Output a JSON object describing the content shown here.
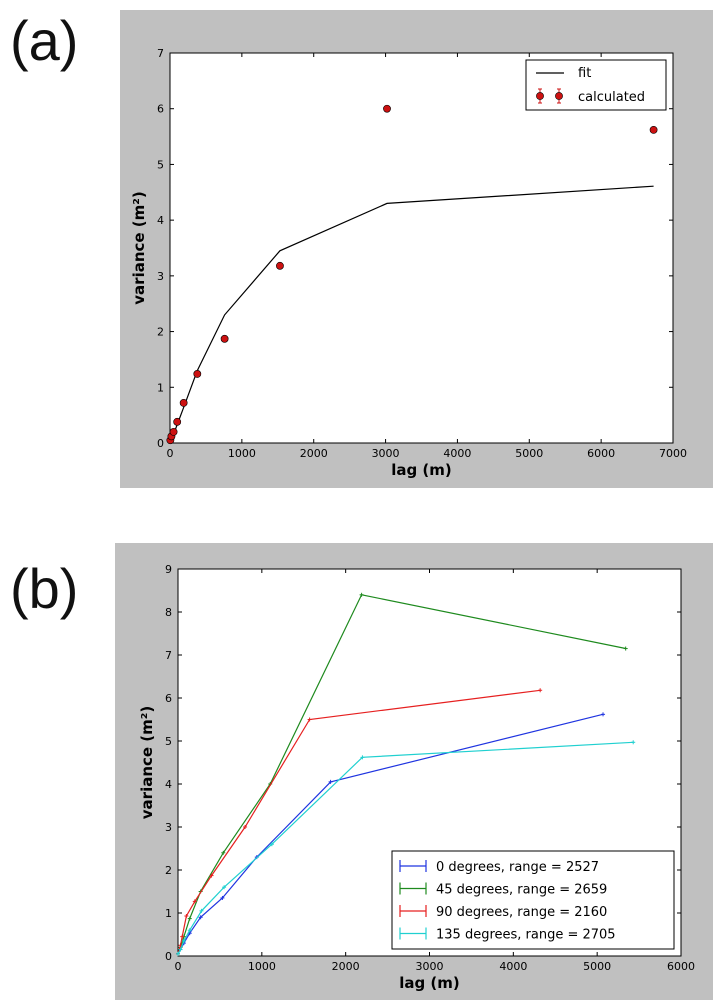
{
  "panels": {
    "a_label": "(a)",
    "b_label": "(b)"
  },
  "chart_data": [
    {
      "type": "line",
      "panel": "(a)",
      "title": "",
      "xlabel": "lag (m)",
      "ylabel": "variance (m²)",
      "xlim": [
        0,
        7000
      ],
      "ylim": [
        0,
        7
      ],
      "xticks": [
        0,
        1000,
        2000,
        3000,
        4000,
        5000,
        6000,
        7000
      ],
      "yticks": [
        0,
        1,
        2,
        3,
        4,
        5,
        6,
        7
      ],
      "legend_position": "top-right",
      "series": [
        {
          "name": "fit",
          "style": "line",
          "color": "#000000",
          "x": [
            0,
            20,
            50,
            100,
            190,
            380,
            760,
            1530,
            3020,
            6730
          ],
          "y": [
            0,
            0.05,
            0.16,
            0.33,
            0.64,
            1.3,
            2.3,
            3.45,
            4.3,
            4.61
          ]
        },
        {
          "name": "calculated",
          "style": "scatter-errorbar",
          "color": "#cc1111",
          "x": [
            5,
            20,
            50,
            100,
            190,
            380,
            760,
            1530,
            3020,
            6730
          ],
          "y": [
            0.05,
            0.12,
            0.2,
            0.38,
            0.72,
            1.24,
            1.87,
            3.18,
            6.0,
            5.62
          ]
        }
      ]
    },
    {
      "type": "line",
      "panel": "(b)",
      "title": "",
      "xlabel": "lag (m)",
      "ylabel": "variance (m²)",
      "xlim": [
        0,
        6000
      ],
      "ylim": [
        0,
        9
      ],
      "xticks": [
        0,
        1000,
        2000,
        3000,
        4000,
        5000,
        6000
      ],
      "yticks": [
        0,
        1,
        2,
        3,
        4,
        5,
        6,
        7,
        8,
        9
      ],
      "legend_position": "bottom-right",
      "series": [
        {
          "name": "0 degrees, range = 2527",
          "color": "#1f34e0",
          "x": [
            0,
            30,
            70,
            140,
            270,
            530,
            940,
            1820,
            5070
          ],
          "y": [
            0.05,
            0.15,
            0.3,
            0.53,
            0.9,
            1.35,
            2.3,
            4.05,
            5.62
          ]
        },
        {
          "name": "45 degrees, range = 2659",
          "color": "#1e8a1e",
          "x": [
            0,
            30,
            70,
            140,
            270,
            540,
            1100,
            2190,
            5340
          ],
          "y": [
            0.05,
            0.2,
            0.45,
            0.87,
            1.5,
            2.4,
            4.0,
            8.4,
            7.15
          ]
        },
        {
          "name": "90 degrees, range = 2160",
          "color": "#e62020",
          "x": [
            0,
            30,
            50,
            100,
            200,
            400,
            800,
            1570,
            4320
          ],
          "y": [
            0.05,
            0.25,
            0.45,
            0.93,
            1.27,
            1.87,
            3.0,
            5.5,
            6.18
          ]
        },
        {
          "name": "135 degrees, range = 2705",
          "color": "#20d0d0",
          "x": [
            0,
            30,
            70,
            140,
            280,
            550,
            1120,
            2200,
            5430
          ],
          "y": [
            0.05,
            0.15,
            0.35,
            0.6,
            1.05,
            1.6,
            2.6,
            4.62,
            4.97
          ]
        }
      ]
    }
  ]
}
